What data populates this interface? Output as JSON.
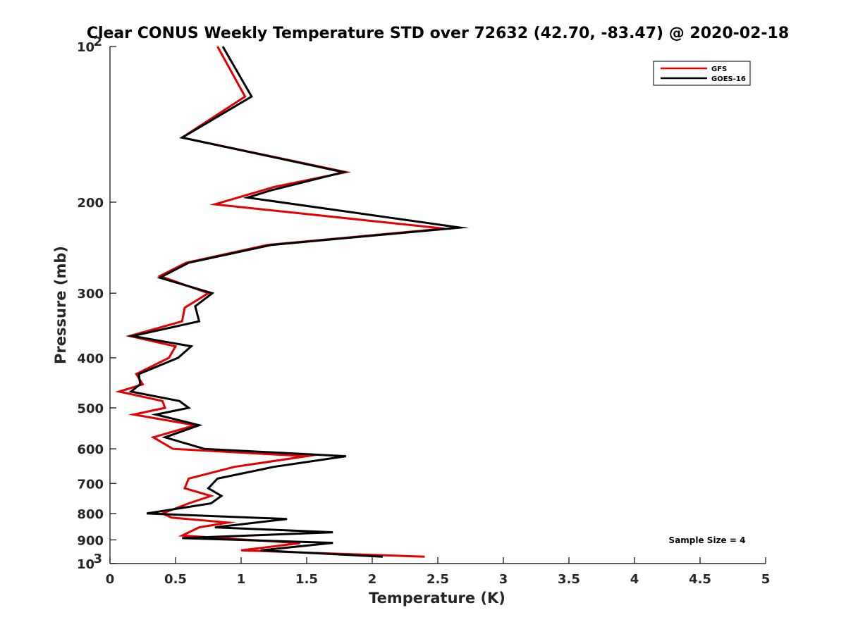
{
  "chart_data": {
    "type": "line",
    "title": "Clear CONUS Weekly Temperature STD over 72632 (42.70, -83.47) @ 2020-02-18",
    "xlabel": "Temperature (K)",
    "ylabel": "Pressure (mb)",
    "xlim": [
      0,
      5
    ],
    "ylim": [
      100,
      1000
    ],
    "y_scale": "log",
    "y_reversed": true,
    "grid": false,
    "legend_position": "top-right",
    "x_ticks": [
      0,
      0.5,
      1,
      1.5,
      2,
      2.5,
      3,
      3.5,
      4,
      4.5,
      5
    ],
    "x_tick_labels": [
      "0",
      "0.5",
      "1",
      "1.5",
      "2",
      "2.5",
      "3",
      "3.5",
      "4",
      "4.5",
      "5"
    ],
    "y_ticks": [
      {
        "value": 100,
        "label": "10",
        "sup": "2"
      },
      {
        "value": 200,
        "label": "200",
        "sup": ""
      },
      {
        "value": 300,
        "label": "300",
        "sup": ""
      },
      {
        "value": 400,
        "label": "400",
        "sup": ""
      },
      {
        "value": 500,
        "label": "500",
        "sup": ""
      },
      {
        "value": 600,
        "label": "600",
        "sup": ""
      },
      {
        "value": 700,
        "label": "700",
        "sup": ""
      },
      {
        "value": 800,
        "label": "800",
        "sup": ""
      },
      {
        "value": 900,
        "label": "900",
        "sup": ""
      },
      {
        "value": 1000,
        "label": "10",
        "sup": "3"
      }
    ],
    "series": [
      {
        "name": "GFS",
        "color": "#e50000",
        "pressure": [
          100,
          125,
          150,
          175,
          187,
          202,
          225,
          242,
          262,
          278,
          300,
          320,
          340,
          363,
          380,
          400,
          430,
          450,
          465,
          485,
          500,
          515,
          540,
          570,
          600,
          620,
          650,
          685,
          715,
          740,
          765,
          800,
          815,
          833,
          851,
          883,
          913,
          943,
          970
        ],
        "values": [
          0.82,
          1.03,
          0.55,
          1.8,
          1.25,
          0.8,
          2.55,
          1.2,
          0.58,
          0.38,
          0.75,
          0.57,
          0.55,
          0.15,
          0.5,
          0.45,
          0.2,
          0.25,
          0.07,
          0.4,
          0.42,
          0.18,
          0.65,
          0.33,
          0.48,
          1.5,
          0.95,
          0.6,
          0.57,
          0.77,
          0.6,
          0.4,
          0.47,
          0.9,
          0.68,
          0.55,
          1.45,
          1.0,
          2.4
        ]
      },
      {
        "name": "GOES-16",
        "color": "#000000",
        "pressure": [
          100,
          125,
          150,
          175,
          190,
          196,
          224,
          242,
          262,
          280,
          300,
          318,
          340,
          363,
          380,
          400,
          430,
          450,
          465,
          485,
          500,
          515,
          540,
          570,
          600,
          620,
          650,
          685,
          715,
          740,
          765,
          800,
          820,
          851,
          870,
          893,
          912,
          943,
          970
        ],
        "values": [
          0.86,
          1.08,
          0.55,
          1.78,
          1.22,
          1.05,
          2.67,
          1.23,
          0.6,
          0.38,
          0.78,
          0.65,
          0.68,
          0.17,
          0.62,
          0.52,
          0.22,
          0.23,
          0.16,
          0.53,
          0.6,
          0.35,
          0.68,
          0.42,
          0.72,
          1.8,
          1.25,
          0.82,
          0.75,
          0.85,
          0.77,
          0.28,
          1.35,
          0.8,
          1.7,
          0.55,
          1.7,
          1.15,
          2.08
        ]
      }
    ],
    "annotations": [
      {
        "text": "Sample Size = 4",
        "position": "bottom-right"
      }
    ]
  }
}
